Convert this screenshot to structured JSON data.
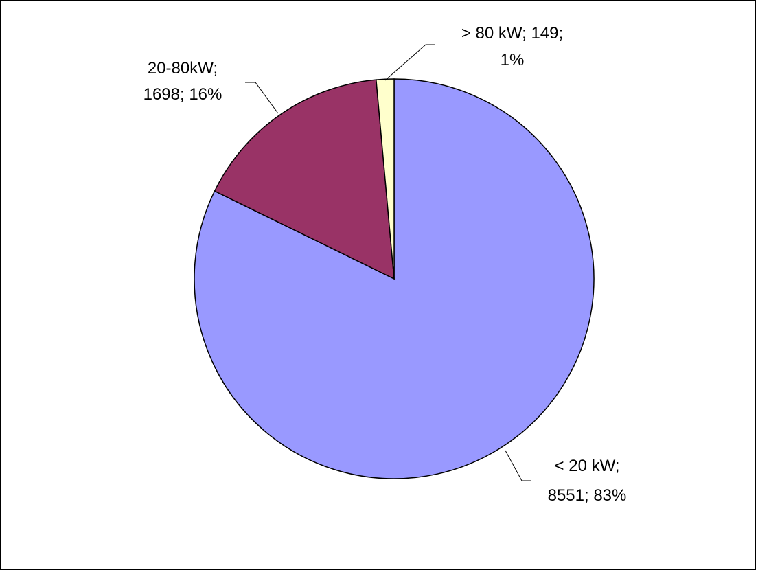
{
  "chart_data": {
    "type": "pie",
    "title": "",
    "slices": [
      {
        "name": "< 20 kW",
        "value": 8551,
        "percent": "83%",
        "color": "#9999FF",
        "label_line1": "< 20 kW;",
        "label_line2": "8551; 83%"
      },
      {
        "name": "20-80kW",
        "value": 1698,
        "percent": "16%",
        "color": "#993366",
        "label_line1": "20-80kW;",
        "label_line2": "1698; 16%"
      },
      {
        "name": "> 80 kW",
        "value": 149,
        "percent": "1%",
        "color": "#FFFFCC",
        "label_line1": "> 80 kW; 149;",
        "label_line2": "1%"
      }
    ],
    "legend": "none",
    "start_angle": "12 o'clock",
    "direction": "clockwise"
  }
}
